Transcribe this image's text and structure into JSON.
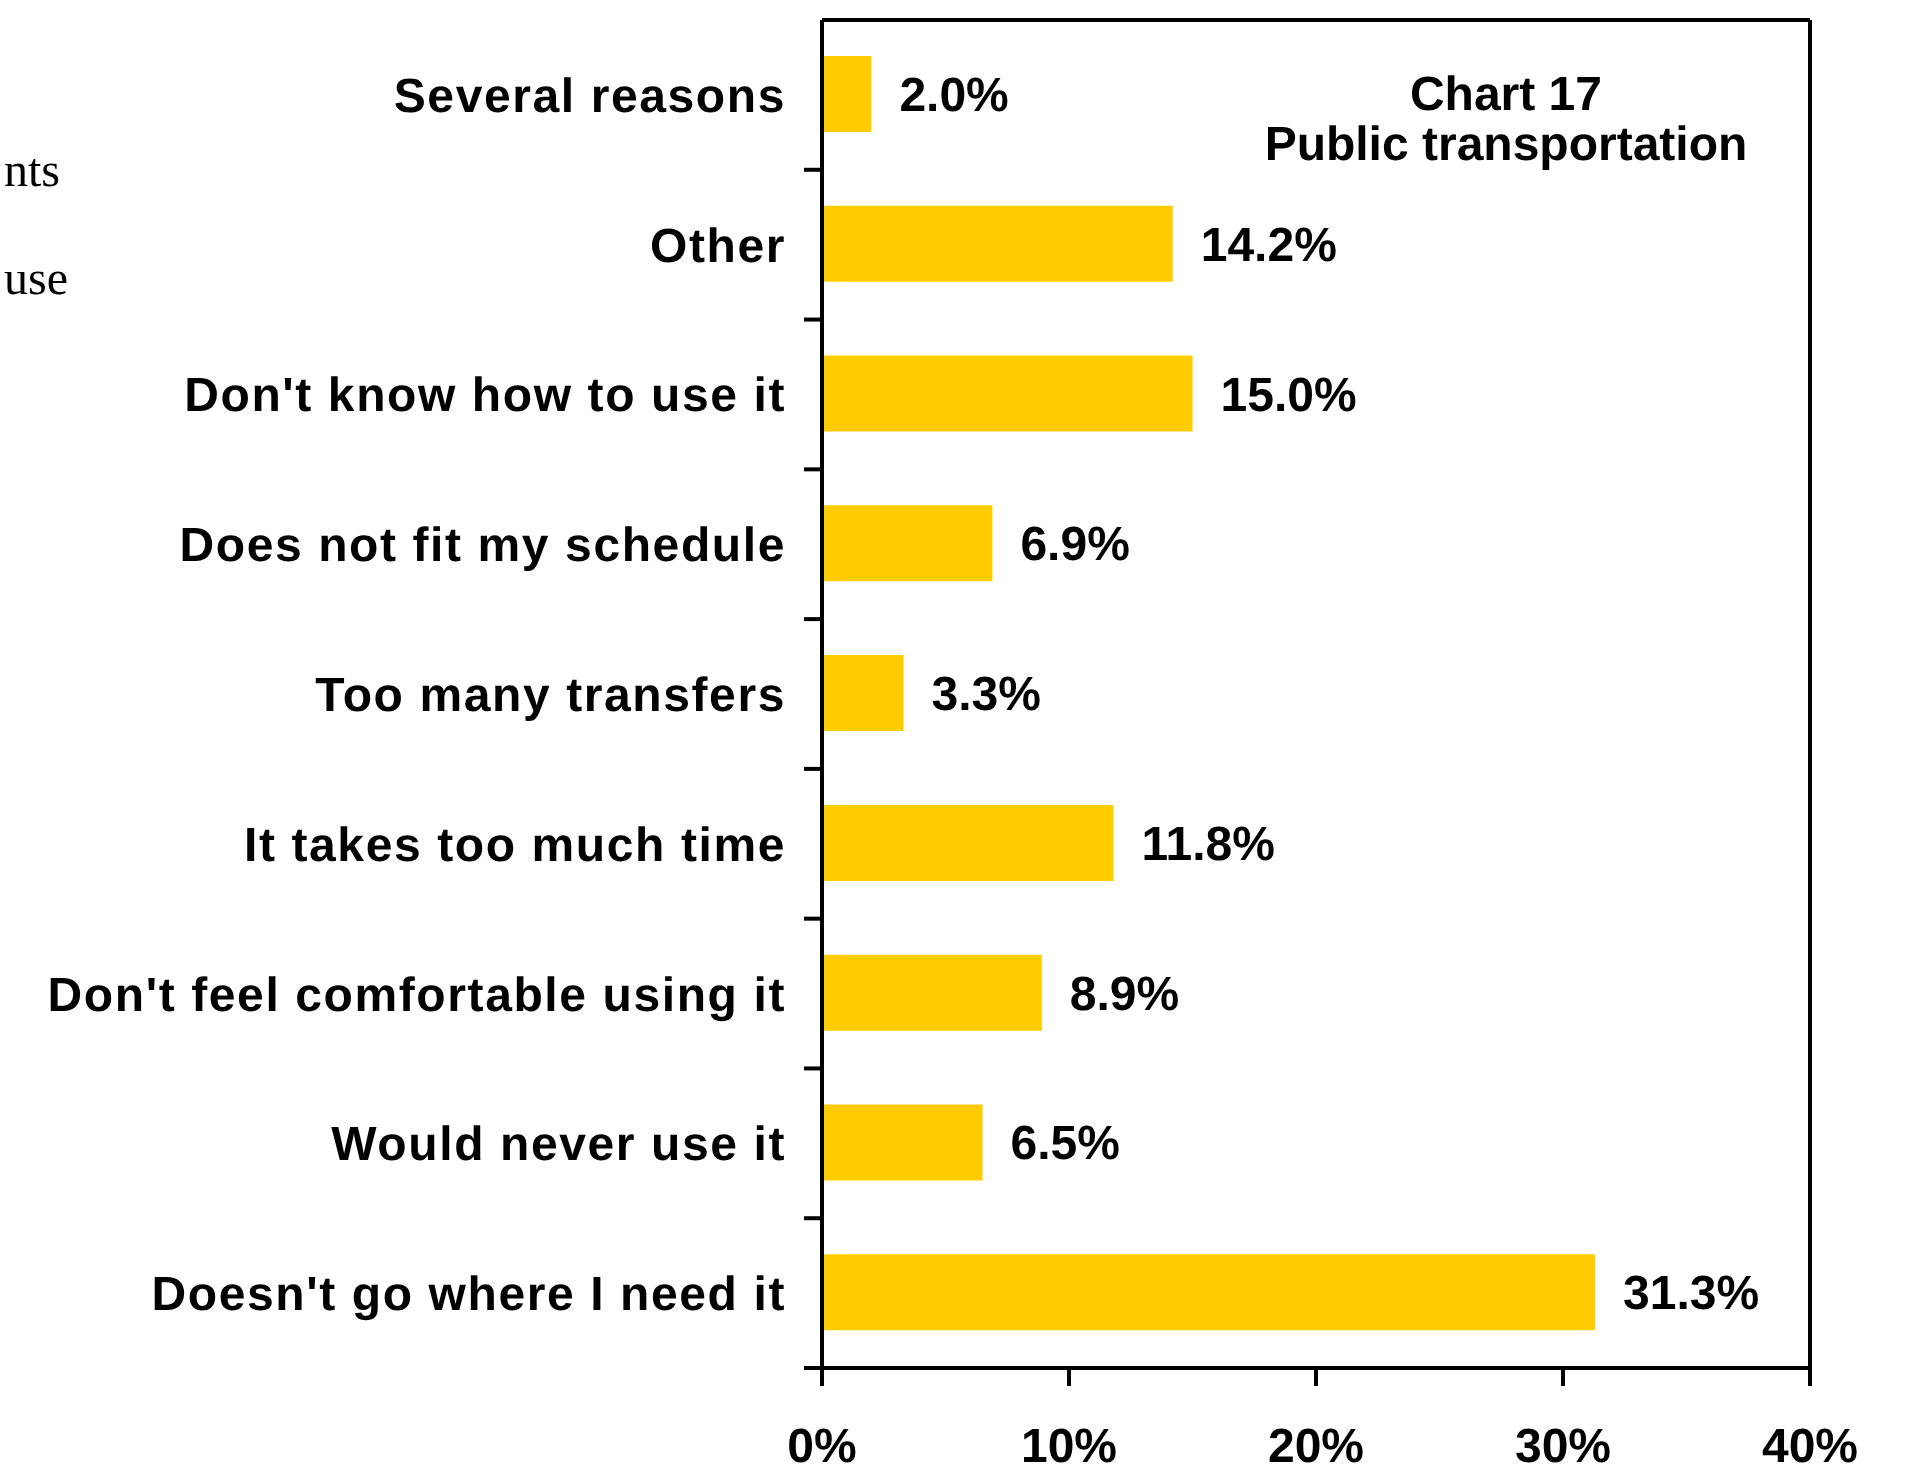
{
  "chart_data": {
    "type": "bar",
    "orientation": "horizontal",
    "title": "Chart 17",
    "subtitle": "Public transportation",
    "categories": [
      "Several reasons",
      "Other",
      "Don't know how to use it",
      "Does not fit my schedule",
      "Too many transfers",
      "It takes too much time",
      "Don't feel comfortable using it",
      "Would never use it",
      "Doesn't go where I need it"
    ],
    "values": [
      2.0,
      14.2,
      15.0,
      6.9,
      3.3,
      11.8,
      8.9,
      6.5,
      31.3
    ],
    "value_labels": [
      "2.0%",
      "14.2%",
      "15.0%",
      "6.9%",
      "3.3%",
      "11.8%",
      "8.9%",
      "6.5%",
      "31.3%"
    ],
    "color": "#ffcc00",
    "xlim": [
      0,
      40
    ],
    "xticks": [
      {
        "value": 0,
        "label": "0%"
      },
      {
        "value": 10,
        "label": "10%"
      },
      {
        "value": 20,
        "label": "20%"
      },
      {
        "value": 30,
        "label": "30%"
      },
      {
        "value": 40,
        "label": "40%"
      }
    ],
    "annotations": [
      "nts",
      "use"
    ]
  }
}
